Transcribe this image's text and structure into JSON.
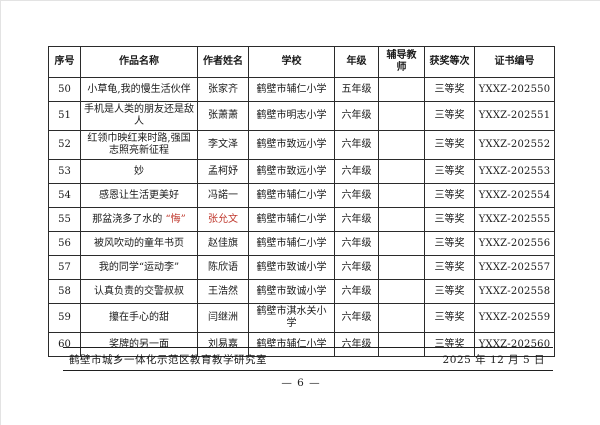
{
  "document": {
    "colors": {
      "accent_red": "#c03a2f",
      "text": "#1a1a1a",
      "table_border": "#2b2b2b"
    },
    "table": {
      "headers": [
        "序号",
        "作品名称",
        "作者姓名",
        "学校",
        "年级",
        "辅导教师",
        "获奖等次",
        "证书编号"
      ],
      "rows": [
        {
          "no": "50",
          "title": "小草龟,我的慢生活伙伴",
          "title_red": "",
          "author": "张家齐",
          "author_red": false,
          "school": "鹤壁市辅仁小学",
          "grade": "五年级",
          "teacher": "",
          "award": "三等奖",
          "cert": "YXXZ-202550"
        },
        {
          "no": "51",
          "title": "手机是人类的朋友还是敌人",
          "title_red": "",
          "author": "张萧萧",
          "author_red": false,
          "school": "鹤壁市明志小学",
          "grade": "六年级",
          "teacher": "",
          "award": "三等奖",
          "cert": "YXXZ-202551"
        },
        {
          "no": "52",
          "title": "红领巾映红来时路,强国志照亮新征程",
          "title_red": "",
          "author": "李文泽",
          "author_red": false,
          "school": "鹤壁市致远小学",
          "grade": "六年级",
          "teacher": "",
          "award": "三等奖",
          "cert": "YXXZ-202552"
        },
        {
          "no": "53",
          "title": "妙",
          "title_red": "",
          "author": "孟柯妤",
          "author_red": false,
          "school": "鹤壁市致远小学",
          "grade": "六年级",
          "teacher": "",
          "award": "三等奖",
          "cert": "YXXZ-202553"
        },
        {
          "no": "54",
          "title": "感恩让生活更美好",
          "title_red": "",
          "author": "冯諾一",
          "author_red": false,
          "school": "鹤壁市辅仁小学",
          "grade": "六年级",
          "teacher": "",
          "award": "三等奖",
          "cert": "YXXZ-202554"
        },
        {
          "no": "55",
          "title": "那盆浇多了水的 ",
          "title_red": "“悔”",
          "author": "张允文",
          "author_red": true,
          "school": "鹤壁市辅仁小学",
          "grade": "六年级",
          "teacher": "",
          "award": "三等奖",
          "cert": "YXXZ-202555"
        },
        {
          "no": "56",
          "title": "被风吹动的童年书页",
          "title_red": "",
          "author": "赵佳旗",
          "author_red": false,
          "school": "鹤壁市辅仁小学",
          "grade": "六年级",
          "teacher": "",
          "award": "三等奖",
          "cert": "YXXZ-202556"
        },
        {
          "no": "57",
          "title": "我的同学“运动李”",
          "title_red": "",
          "author": "陈欣语",
          "author_red": false,
          "school": "鹤壁市致诚小学",
          "grade": "六年级",
          "teacher": "",
          "award": "三等奖",
          "cert": "YXXZ-202557"
        },
        {
          "no": "58",
          "title": "认真负责的交警叔叔",
          "title_red": "",
          "author": "王浩然",
          "author_red": false,
          "school": "鹤壁市致诚小学",
          "grade": "六年级",
          "teacher": "",
          "award": "三等奖",
          "cert": "YXXZ-202558"
        },
        {
          "no": "59",
          "title": "攥在手心的甜",
          "title_red": "",
          "author": "闫继洲",
          "author_red": false,
          "school": "鹤壁市淇水关小学",
          "grade": "六年级",
          "teacher": "",
          "award": "三等奖",
          "cert": "YXXZ-202559"
        },
        {
          "no": "60",
          "title": "奖牌的另一面",
          "title_red": "",
          "author": "刘易嘉",
          "author_red": false,
          "school": "鹤壁市辅仁小学",
          "grade": "六年级",
          "teacher": "",
          "award": "三等奖",
          "cert": "YXXZ-202560"
        }
      ]
    },
    "footer": {
      "organization": "鹤壁市城乡一体化示范区教育教学研究室",
      "date": "2025 年 12 月 5 日",
      "page_number": "— 6 —"
    }
  }
}
